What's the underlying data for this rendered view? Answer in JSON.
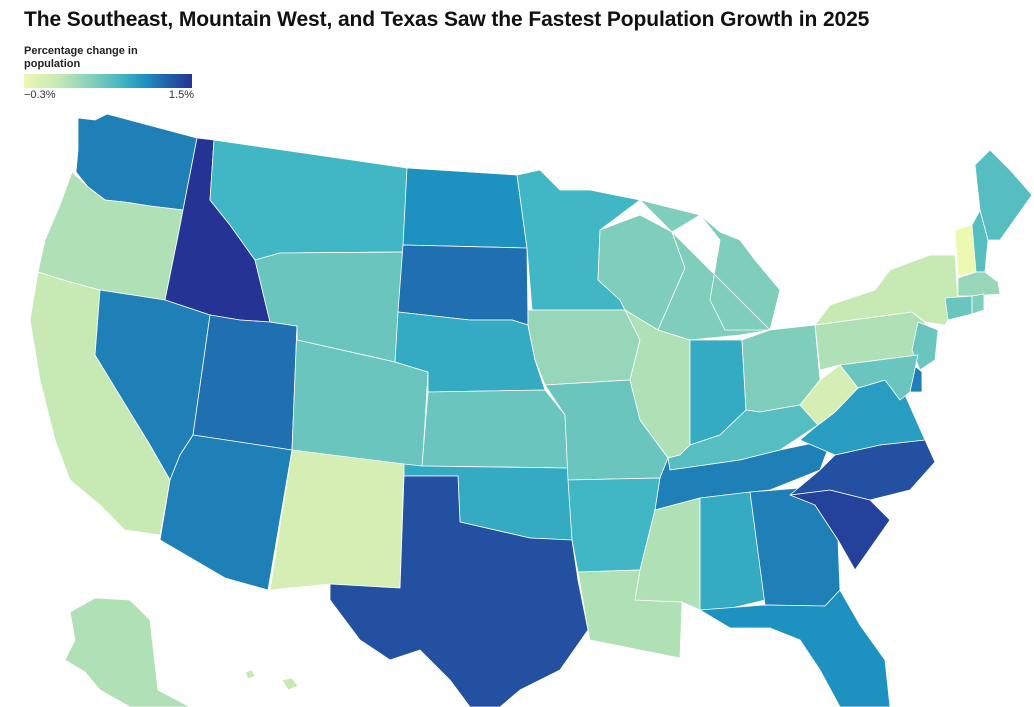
{
  "title": "The Southeast, Mountain West, and Texas Saw the Fastest Population Growth in 2025",
  "legend": {
    "title": "Percentage change in population",
    "min_label": "−0.3%",
    "max_label": "1.5%",
    "min_value": -0.3,
    "max_value": 1.5,
    "colors": [
      "#edf8b1",
      "#c7e9b4",
      "#7fcdbb",
      "#41b6c4",
      "#1d91c0",
      "#225ea8",
      "#253494"
    ]
  },
  "states": [
    {
      "code": "WA",
      "value": 1.0
    },
    {
      "code": "OR",
      "value": 0.1
    },
    {
      "code": "CA",
      "value": 0.0
    },
    {
      "code": "ID",
      "value": 1.5
    },
    {
      "code": "NV",
      "value": 1.0
    },
    {
      "code": "UT",
      "value": 1.1
    },
    {
      "code": "AZ",
      "value": 1.0
    },
    {
      "code": "MT",
      "value": 0.6
    },
    {
      "code": "WY",
      "value": 0.4
    },
    {
      "code": "CO",
      "value": 0.4
    },
    {
      "code": "NM",
      "value": -0.1
    },
    {
      "code": "ND",
      "value": 0.9
    },
    {
      "code": "SD",
      "value": 1.1
    },
    {
      "code": "NE",
      "value": 0.7
    },
    {
      "code": "KS",
      "value": 0.4
    },
    {
      "code": "OK",
      "value": 0.7
    },
    {
      "code": "TX",
      "value": 1.3
    },
    {
      "code": "MN",
      "value": 0.6
    },
    {
      "code": "IA",
      "value": 0.2
    },
    {
      "code": "MO",
      "value": 0.4
    },
    {
      "code": "AR",
      "value": 0.6
    },
    {
      "code": "LA",
      "value": 0.1
    },
    {
      "code": "WI",
      "value": 0.3
    },
    {
      "code": "IL",
      "value": 0.1
    },
    {
      "code": "MI",
      "value": 0.3
    },
    {
      "code": "IN",
      "value": 0.7
    },
    {
      "code": "OH",
      "value": 0.3
    },
    {
      "code": "KY",
      "value": 0.5
    },
    {
      "code": "TN",
      "value": 1.0
    },
    {
      "code": "MS",
      "value": 0.1
    },
    {
      "code": "AL",
      "value": 0.7
    },
    {
      "code": "GA",
      "value": 1.0
    },
    {
      "code": "FL",
      "value": 0.9
    },
    {
      "code": "SC",
      "value": 1.4
    },
    {
      "code": "NC",
      "value": 1.3
    },
    {
      "code": "VA",
      "value": 0.8
    },
    {
      "code": "WV",
      "value": -0.1
    },
    {
      "code": "PA",
      "value": 0.1
    },
    {
      "code": "NY",
      "value": 0.0
    },
    {
      "code": "VT",
      "value": -0.3
    },
    {
      "code": "NH",
      "value": 0.5
    },
    {
      "code": "ME",
      "value": 0.5
    },
    {
      "code": "MA",
      "value": 0.2
    },
    {
      "code": "CT",
      "value": 0.4
    },
    {
      "code": "RI",
      "value": 0.3
    },
    {
      "code": "NJ",
      "value": 0.4
    },
    {
      "code": "DE",
      "value": 1.0
    },
    {
      "code": "MD",
      "value": 0.4
    },
    {
      "code": "AK",
      "value": 0.1
    },
    {
      "code": "HI",
      "value": 0.0
    }
  ]
}
